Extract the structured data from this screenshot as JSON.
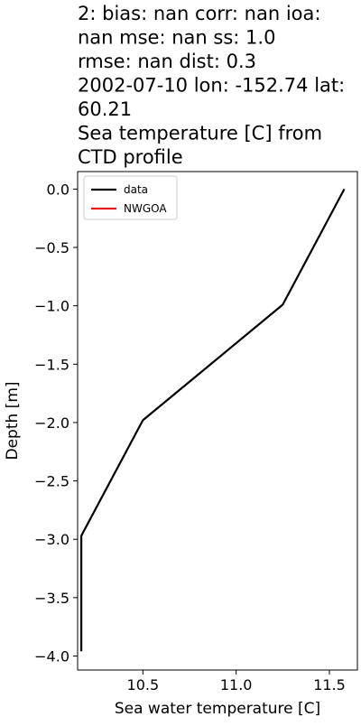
{
  "chart_data": {
    "type": "line",
    "title_lines": [
      "2: bias: nan  corr: nan  ioa:",
      "nan  mse: nan  ss: 1.0",
      "rmse: nan  dist: 0.3",
      "2002-07-10 lon: -152.74 lat:",
      "60.21",
      "Sea temperature [C] from",
      "CTD profile"
    ],
    "xlabel": "Sea water temperature [C]",
    "ylabel": "Depth [m]",
    "xlim": [
      10.15,
      11.65
    ],
    "ylim": [
      -4.12,
      0.15
    ],
    "xticks": [
      10.5,
      11.0,
      11.5
    ],
    "xtick_labels": [
      "10.5",
      "11.0",
      "11.5"
    ],
    "yticks": [
      0.0,
      -0.5,
      -1.0,
      -1.5,
      -2.0,
      -2.5,
      -3.0,
      -3.5,
      -4.0
    ],
    "ytick_labels": [
      "0.0",
      "−0.5",
      "−1.0",
      "−1.5",
      "−2.0",
      "−2.5",
      "−3.0",
      "−3.5",
      "−4.0"
    ],
    "grid": false,
    "legend_position": "top-left",
    "series": [
      {
        "name": "data",
        "color": "#000000",
        "x": [
          11.58,
          11.25,
          10.5,
          10.17,
          10.17
        ],
        "y": [
          0.0,
          -0.99,
          -1.98,
          -2.97,
          -3.96
        ]
      },
      {
        "name": "NWGOA",
        "color": "#e41a1c",
        "x": [],
        "y": []
      }
    ]
  }
}
